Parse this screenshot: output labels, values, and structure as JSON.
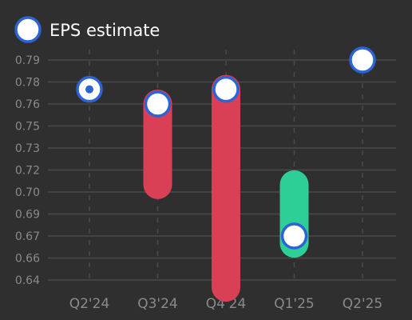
{
  "legend": {
    "label": "EPS estimate",
    "placement": "top-left"
  },
  "colors": {
    "background": "#2f2f2f",
    "grid": "#4a4a4a",
    "marker_fill": "#ffffff",
    "marker_stroke": "#2c64d6",
    "decline": "#d94055",
    "increase": "#2ecf96",
    "tick_text": "#8a8a8a"
  },
  "chart_data": {
    "type": "range",
    "categories": [
      "Q2'24",
      "Q3'24",
      "Q4'24",
      "Q1'25",
      "Q2'25"
    ],
    "series": [
      {
        "name": "EPS estimate",
        "points": [
          {
            "category": "Q2'24",
            "from": 0.77,
            "to": 0.77,
            "estimate": 0.77
          },
          {
            "category": "Q3'24",
            "from": 0.76,
            "to": 0.705,
            "estimate": 0.76
          },
          {
            "category": "Q4'24",
            "from": 0.77,
            "to": 0.635,
            "estimate": 0.77
          },
          {
            "category": "Q1'25",
            "from": 0.665,
            "to": 0.705,
            "estimate": 0.67
          },
          {
            "category": "Q2'25",
            "from": 0.79,
            "to": 0.79,
            "estimate": 0.79
          }
        ]
      }
    ],
    "yticks": [
      "0.79",
      "0.78",
      "0.76",
      "0.75",
      "0.73",
      "0.72",
      "0.70",
      "0.69",
      "0.67",
      "0.66",
      "0.64"
    ],
    "ylim": [
      0.64,
      0.79
    ],
    "grid": true
  }
}
